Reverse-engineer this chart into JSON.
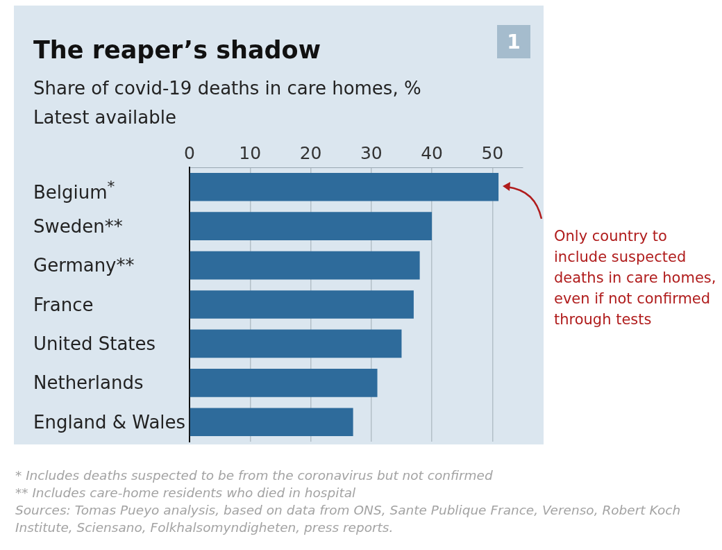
{
  "chart_data": {
    "type": "bar",
    "orientation": "horizontal",
    "title": "The reaper’s shadow",
    "subtitle": "Share of covid-19 deaths in care homes, %\nLatest available",
    "categories": [
      "Belgium$^{*}$",
      "Sweden**",
      "Germany**",
      "France",
      "United States",
      "Netherlands",
      "England & Wales"
    ],
    "values": [
      51,
      40,
      38,
      37,
      35,
      31,
      27
    ],
    "color": "#2e6b9b",
    "xlim": [
      0,
      55
    ],
    "xticks": [
      0,
      10,
      20,
      30,
      40,
      50
    ],
    "grid": "x",
    "legend": false,
    "annotations": [
      "Only country to include suspected deaths in care homes, even if not confirmed through tests",
      "1",
      "* Includes deaths suspected to be from the coronavirus but not confirmed",
      "** Includes care-home residents who died in hospital",
      "Sources: Tomas Pueyo analysis, based on data from ONS, Sante Publique France, Verenso, Robert Koch Institute, Sciensano, Folkhalsomyndigheten, press reports."
    ]
  }
}
